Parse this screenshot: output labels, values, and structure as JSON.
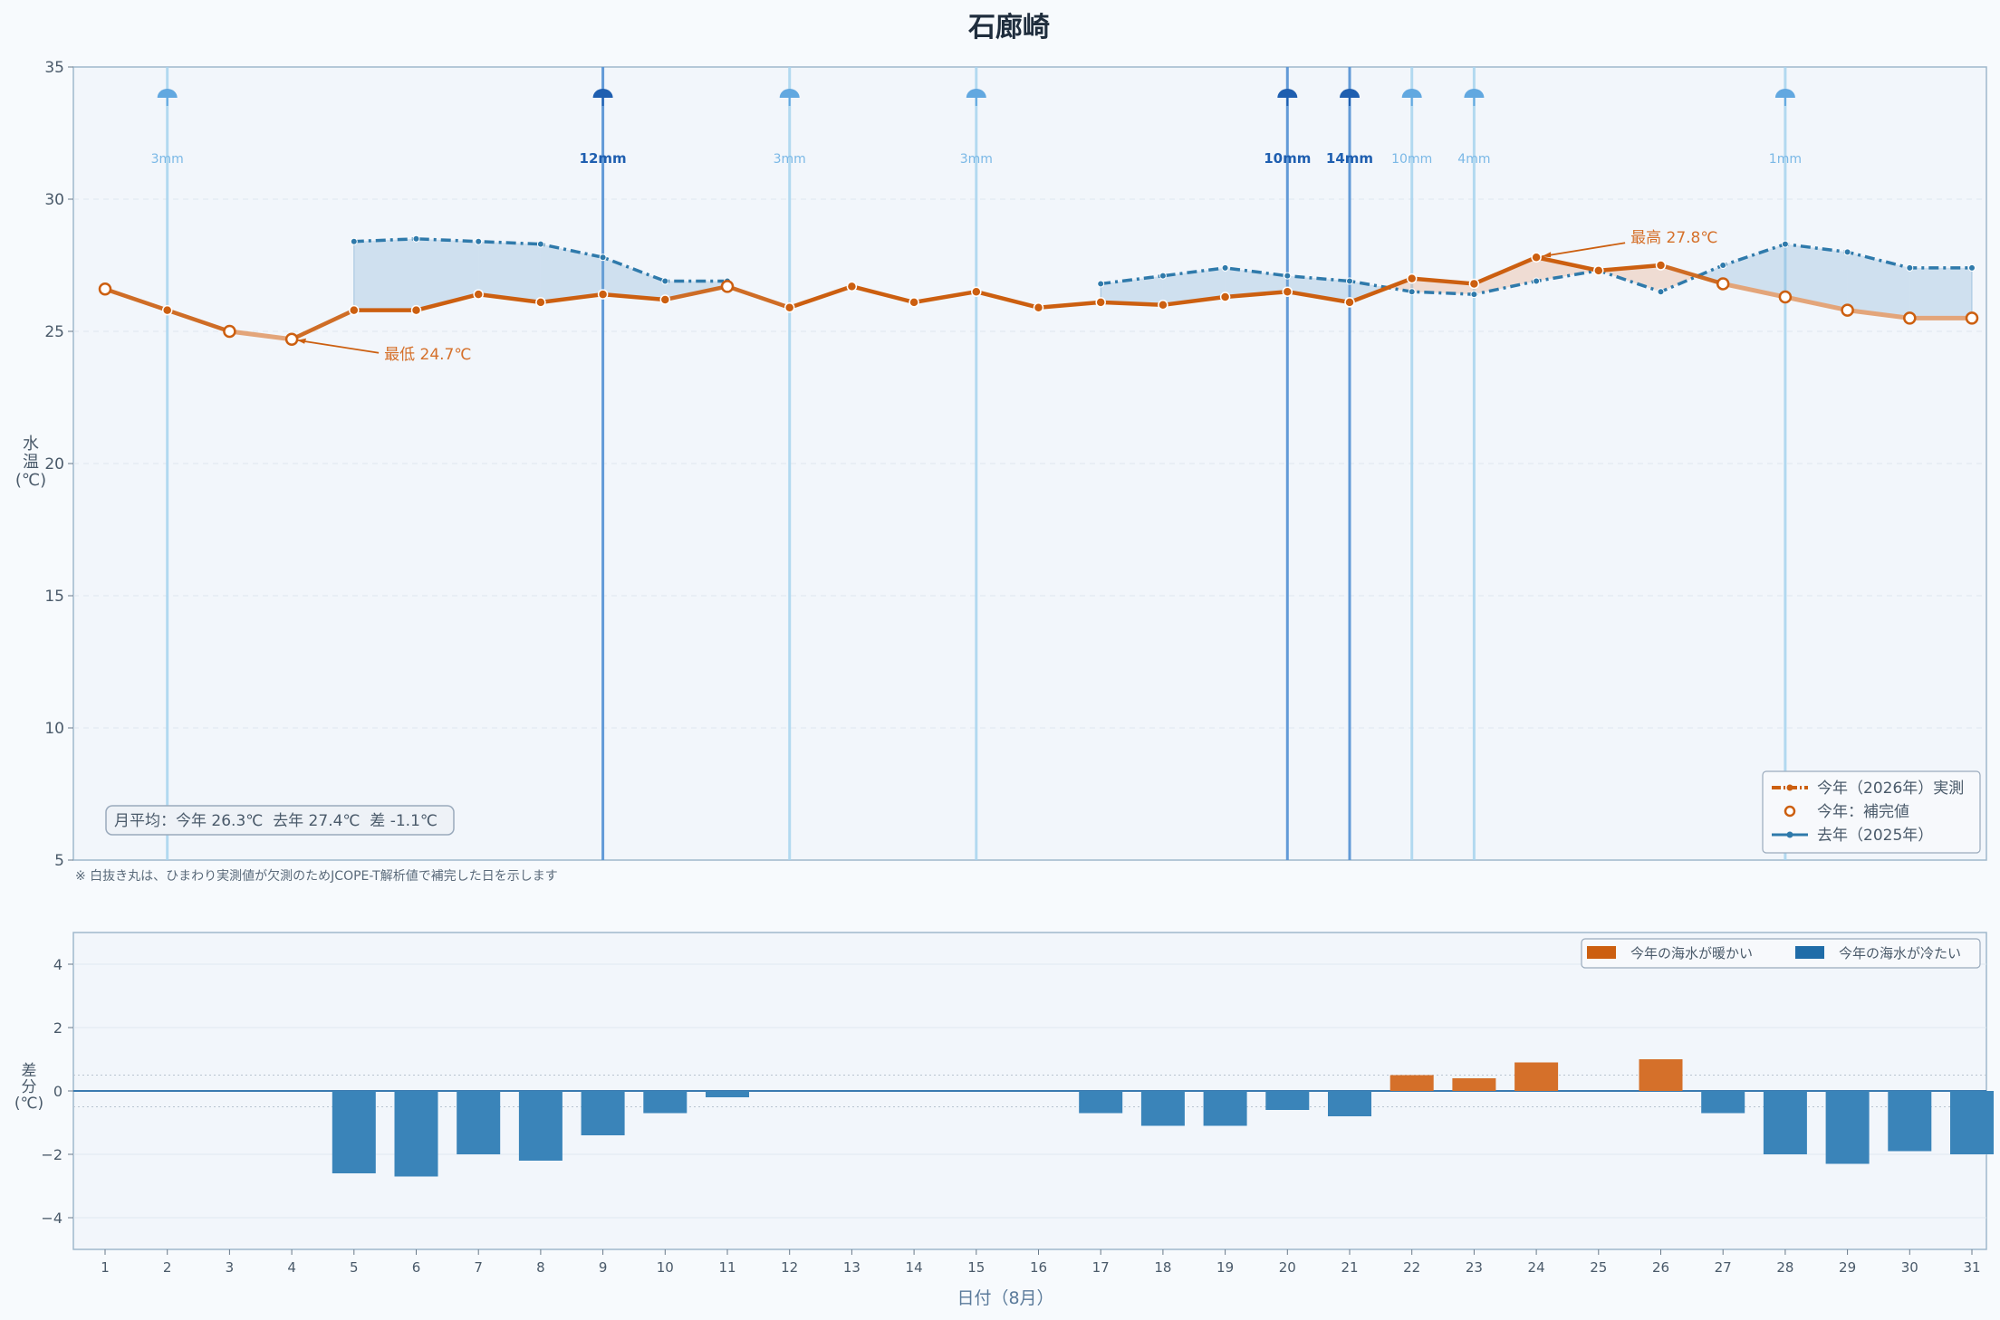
{
  "title": "石廊崎",
  "colors": {
    "this_year": "#cc5f10",
    "last_year": "#2f7aab",
    "rain_light": "#a8d4ef",
    "rain_heavy": "#5b96d6",
    "warm_bar": "#d5702a",
    "cold_bar": "#3a84b9"
  },
  "chart_data": [
    {
      "type": "line",
      "ylabel": "水温(℃)",
      "ylim": [
        5,
        35
      ],
      "yticks": [
        5,
        10,
        15,
        20,
        25,
        30,
        35
      ],
      "x": [
        1,
        2,
        3,
        4,
        5,
        6,
        7,
        8,
        9,
        10,
        11,
        12,
        13,
        14,
        15,
        16,
        17,
        18,
        19,
        20,
        21,
        22,
        23,
        24,
        25,
        26,
        27,
        28,
        29,
        30,
        31
      ],
      "series": [
        {
          "name": "今年（2026年）実測",
          "values": [
            26.6,
            25.8,
            25.0,
            24.7,
            25.8,
            25.8,
            26.4,
            26.1,
            26.4,
            26.2,
            26.7,
            25.9,
            26.7,
            26.1,
            26.5,
            25.9,
            26.1,
            26.0,
            26.3,
            26.5,
            26.1,
            27.0,
            26.8,
            27.8,
            27.3,
            27.5,
            26.8,
            26.3,
            25.8,
            25.5,
            25.5
          ],
          "imputed_days": [
            1,
            3,
            4,
            11,
            27,
            28,
            29,
            30,
            31
          ]
        },
        {
          "name": "去年（2025年）",
          "values": [
            null,
            null,
            null,
            null,
            28.4,
            28.5,
            28.4,
            28.3,
            27.8,
            26.9,
            26.9,
            null,
            null,
            null,
            null,
            null,
            26.8,
            27.1,
            27.4,
            27.1,
            26.9,
            26.5,
            26.4,
            26.9,
            27.3,
            26.5,
            27.5,
            28.3,
            28.0,
            27.4,
            27.4
          ]
        }
      ],
      "legend": {
        "placement": "bottom-right",
        "actual": "今年（2026年）実測",
        "imputed": "今年：補完値",
        "last_year": "去年（2025年）"
      },
      "rain": [
        {
          "day": 2,
          "label": "3mm",
          "heavy": false
        },
        {
          "day": 9,
          "label": "12mm",
          "heavy": true
        },
        {
          "day": 12,
          "label": "3mm",
          "heavy": false
        },
        {
          "day": 15,
          "label": "3mm",
          "heavy": false
        },
        {
          "day": 20,
          "label": "10mm",
          "heavy": true
        },
        {
          "day": 21,
          "label": "14mm",
          "heavy": true
        },
        {
          "day": 22,
          "label": "10mm",
          "heavy": false
        },
        {
          "day": 23,
          "label": "4mm",
          "heavy": false
        },
        {
          "day": 28,
          "label": "1mm",
          "heavy": false
        }
      ],
      "annotations": {
        "min": {
          "day": 4,
          "value": 24.7,
          "label": "最低 24.7℃"
        },
        "max": {
          "day": 24,
          "value": 27.8,
          "label": "最高 27.8℃"
        }
      },
      "summary": "月平均：今年 26.3℃  去年 27.4℃  差 -1.1℃",
      "footnote": "※ 白抜き丸は、ひまわり実測値が欠測のためJCOPE-T解析値で補完した日を示します"
    },
    {
      "type": "bar",
      "ylabel": "差分(℃)",
      "xlabel": "日付（8月）",
      "ylim": [
        -5,
        5
      ],
      "yticks": [
        -4,
        -2,
        0,
        2,
        4
      ],
      "categories": [
        "1",
        "2",
        "3",
        "4",
        "5",
        "6",
        "7",
        "8",
        "9",
        "10",
        "11",
        "12",
        "13",
        "14",
        "15",
        "16",
        "17",
        "18",
        "19",
        "20",
        "21",
        "22",
        "23",
        "24",
        "25",
        "26",
        "27",
        "28",
        "29",
        "30",
        "31"
      ],
      "values": [
        null,
        null,
        null,
        null,
        -2.6,
        -2.7,
        -2.0,
        -2.2,
        -1.4,
        -0.7,
        -0.2,
        null,
        null,
        null,
        null,
        null,
        -0.7,
        -1.1,
        -1.1,
        -0.6,
        -0.8,
        0.5,
        0.4,
        0.9,
        0.0,
        1.0,
        -0.7,
        -2.0,
        -2.3,
        -1.9,
        -2.0
      ],
      "legend": {
        "placement": "top-right",
        "warm": "今年の海水が暖かい",
        "cold": "今年の海水が冷たい"
      }
    }
  ]
}
